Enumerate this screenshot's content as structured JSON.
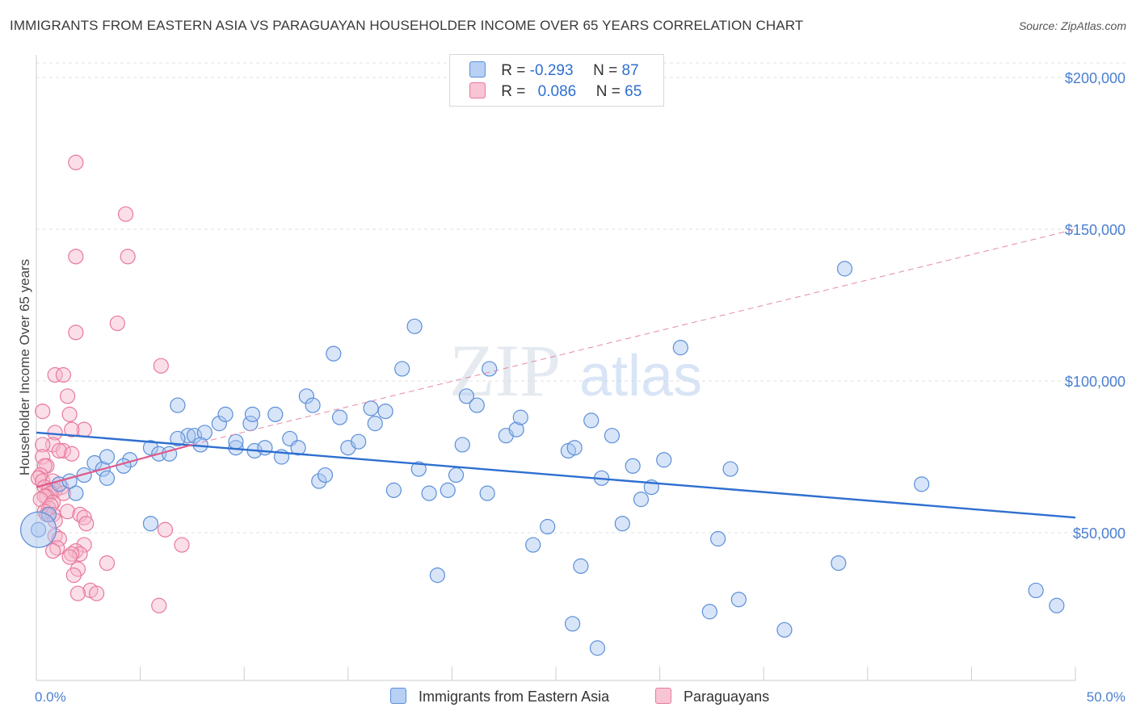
{
  "title": "IMMIGRANTS FROM EASTERN ASIA VS PARAGUAYAN HOUSEHOLDER INCOME OVER 65 YEARS CORRELATION CHART",
  "source": "Source: ZipAtlas.com",
  "watermark": {
    "zip": "ZIP",
    "atlas": "atlas"
  },
  "legend": {
    "blue": {
      "r_label": "R =",
      "r_value": "-0.293",
      "n_label": "N =",
      "n_value": "87"
    },
    "pink": {
      "r_label": "R =",
      "r_value": "0.086",
      "n_label": "N =",
      "n_value": "65"
    }
  },
  "bottom_legend": {
    "blue": "Immigrants from Eastern Asia",
    "pink": "Paraguayans"
  },
  "colors": {
    "blue_fill": "#a9c6f0",
    "blue_stroke": "#5b8fd9",
    "blue_line": "#2f6fd0",
    "pink_fill": "#f6b9cc",
    "pink_stroke": "#e8799c",
    "pink_line": "#e05a8a",
    "axis_text": "#4a7fd1",
    "grid": "#e2e2e2"
  },
  "chart_data": {
    "type": "scatter",
    "title": "IMMIGRANTS FROM EASTERN ASIA VS PARAGUAYAN HOUSEHOLDER INCOME OVER 65 YEARS CORRELATION CHART",
    "xlabel": "",
    "ylabel": "Householder Income Over 65 years",
    "xlim": [
      0,
      50
    ],
    "ylim": [
      5000,
      210000
    ],
    "x_tick_labels": [
      "0.0%",
      "50.0%"
    ],
    "y_ticks": [
      50000,
      100000,
      150000,
      200000
    ],
    "y_tick_labels": [
      "$50,000",
      "$100,000",
      "$150,000",
      "$200,000"
    ],
    "series": [
      {
        "name": "Immigrants from Eastern Asia",
        "color": "blue",
        "trend": {
          "x": [
            0,
            50
          ],
          "y": [
            83000,
            55000
          ],
          "style": "solid"
        },
        "points": [
          [
            0.1,
            51000
          ],
          [
            0.6,
            56000
          ],
          [
            1.1,
            66000
          ],
          [
            1.9,
            63000
          ],
          [
            1.6,
            67000
          ],
          [
            2.3,
            69000
          ],
          [
            2.8,
            73000
          ],
          [
            3.2,
            71000
          ],
          [
            3.4,
            75000
          ],
          [
            3.4,
            68000
          ],
          [
            4.5,
            74000
          ],
          [
            4.2,
            72000
          ],
          [
            5.5,
            78000
          ],
          [
            5.9,
            76000
          ],
          [
            6.4,
            76000
          ],
          [
            5.5,
            53000
          ],
          [
            7.3,
            82000
          ],
          [
            6.8,
            81000
          ],
          [
            6.8,
            92000
          ],
          [
            7.6,
            82000
          ],
          [
            8.1,
            83000
          ],
          [
            8.8,
            86000
          ],
          [
            9.1,
            89000
          ],
          [
            7.9,
            79000
          ],
          [
            9.6,
            78000
          ],
          [
            9.6,
            80000
          ],
          [
            10.5,
            77000
          ],
          [
            10.3,
            86000
          ],
          [
            10.4,
            89000
          ],
          [
            11.0,
            78000
          ],
          [
            11.5,
            89000
          ],
          [
            11.8,
            75000
          ],
          [
            12.2,
            81000
          ],
          [
            12.6,
            78000
          ],
          [
            13.0,
            95000
          ],
          [
            13.3,
            92000
          ],
          [
            13.6,
            67000
          ],
          [
            13.9,
            69000
          ],
          [
            14.3,
            109000
          ],
          [
            14.6,
            88000
          ],
          [
            15.0,
            78000
          ],
          [
            15.5,
            80000
          ],
          [
            16.1,
            91000
          ],
          [
            16.3,
            86000
          ],
          [
            16.8,
            90000
          ],
          [
            17.2,
            64000
          ],
          [
            17.6,
            104000
          ],
          [
            18.2,
            118000
          ],
          [
            18.4,
            71000
          ],
          [
            18.9,
            63000
          ],
          [
            19.3,
            36000
          ],
          [
            19.8,
            64000
          ],
          [
            20.2,
            69000
          ],
          [
            20.5,
            79000
          ],
          [
            20.7,
            95000
          ],
          [
            21.2,
            92000
          ],
          [
            21.7,
            63000
          ],
          [
            21.8,
            104000
          ],
          [
            22.6,
            82000
          ],
          [
            23.1,
            84000
          ],
          [
            23.3,
            88000
          ],
          [
            23.9,
            46000
          ],
          [
            24.6,
            52000
          ],
          [
            25.6,
            77000
          ],
          [
            25.9,
            78000
          ],
          [
            25.8,
            20000
          ],
          [
            26.2,
            39000
          ],
          [
            26.7,
            87000
          ],
          [
            27.0,
            12000
          ],
          [
            27.2,
            68000
          ],
          [
            27.7,
            82000
          ],
          [
            28.2,
            53000
          ],
          [
            28.7,
            72000
          ],
          [
            29.1,
            61000
          ],
          [
            29.6,
            65000
          ],
          [
            30.2,
            74000
          ],
          [
            31.0,
            111000
          ],
          [
            32.4,
            24000
          ],
          [
            32.8,
            48000
          ],
          [
            33.4,
            71000
          ],
          [
            33.8,
            28000
          ],
          [
            36.0,
            18000
          ],
          [
            38.6,
            40000
          ],
          [
            38.9,
            137000
          ],
          [
            42.6,
            66000
          ],
          [
            48.1,
            31000
          ],
          [
            49.1,
            26000
          ]
        ]
      },
      {
        "name": "Paraguayans",
        "color": "pink",
        "trend": {
          "x": [
            0,
            7.5
          ],
          "y": [
            65000,
            79000
          ],
          "style": "solid",
          "extension": {
            "x": [
              7.5,
              50
            ],
            "y": [
              79000,
              150000
            ],
            "style": "dashed"
          }
        },
        "points": [
          [
            1.9,
            172000
          ],
          [
            4.3,
            155000
          ],
          [
            1.9,
            141000
          ],
          [
            4.4,
            141000
          ],
          [
            3.9,
            119000
          ],
          [
            1.9,
            116000
          ],
          [
            6.0,
            105000
          ],
          [
            0.9,
            102000
          ],
          [
            1.3,
            102000
          ],
          [
            1.5,
            95000
          ],
          [
            0.3,
            90000
          ],
          [
            1.6,
            89000
          ],
          [
            2.3,
            84000
          ],
          [
            0.9,
            83000
          ],
          [
            1.7,
            84000
          ],
          [
            0.8,
            79000
          ],
          [
            1.3,
            77000
          ],
          [
            0.3,
            79000
          ],
          [
            1.1,
            77000
          ],
          [
            1.7,
            76000
          ],
          [
            0.3,
            75000
          ],
          [
            0.5,
            72000
          ],
          [
            0.4,
            72000
          ],
          [
            0.2,
            69000
          ],
          [
            0.1,
            68000
          ],
          [
            0.3,
            67000
          ],
          [
            0.8,
            67000
          ],
          [
            1.2,
            65000
          ],
          [
            0.4,
            65000
          ],
          [
            0.6,
            64000
          ],
          [
            0.9,
            64000
          ],
          [
            1.3,
            63000
          ],
          [
            0.7,
            63000
          ],
          [
            0.5,
            62000
          ],
          [
            0.4,
            62000
          ],
          [
            0.2,
            61000
          ],
          [
            0.8,
            60000
          ],
          [
            0.6,
            58000
          ],
          [
            0.7,
            59000
          ],
          [
            1.5,
            57000
          ],
          [
            0.4,
            57000
          ],
          [
            0.5,
            56000
          ],
          [
            0.8,
            56000
          ],
          [
            2.1,
            56000
          ],
          [
            2.3,
            55000
          ],
          [
            0.9,
            54000
          ],
          [
            2.4,
            53000
          ],
          [
            6.2,
            51000
          ],
          [
            0.9,
            49000
          ],
          [
            1.1,
            48000
          ],
          [
            2.3,
            46000
          ],
          [
            7.0,
            46000
          ],
          [
            1.0,
            45000
          ],
          [
            0.8,
            44000
          ],
          [
            1.9,
            44000
          ],
          [
            2.1,
            43000
          ],
          [
            1.7,
            43000
          ],
          [
            1.6,
            42000
          ],
          [
            3.4,
            40000
          ],
          [
            2.0,
            38000
          ],
          [
            1.8,
            36000
          ],
          [
            2.6,
            31000
          ],
          [
            2.9,
            30000
          ],
          [
            2.0,
            30000
          ],
          [
            5.9,
            26000
          ]
        ]
      }
    ]
  }
}
